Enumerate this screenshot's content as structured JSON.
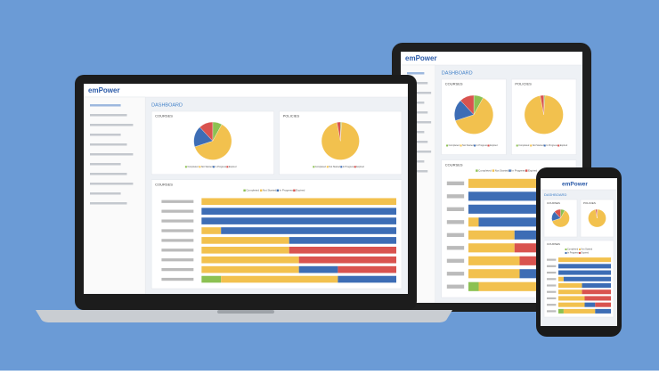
{
  "brand": "emPower",
  "heading": "DASHBOARD",
  "courses_card": {
    "title": "COURSES",
    "pie": [
      8,
      62,
      18,
      12
    ]
  },
  "policies_card": {
    "title": "POLICIES",
    "pie": [
      1,
      96,
      0,
      3
    ]
  },
  "courses_bars": {
    "title": "COURSES",
    "series": [
      {
        "name": "Completed",
        "color": "#8cc152",
        "values": [
          0,
          0,
          0,
          0,
          0,
          0,
          0,
          0,
          10
        ]
      },
      {
        "name": "Not Started",
        "color": "#f2c14e",
        "values": [
          100,
          0,
          0,
          10,
          45,
          45,
          50,
          50,
          60
        ]
      },
      {
        "name": "In Progress",
        "color": "#3d6db5",
        "values": [
          0,
          100,
          100,
          90,
          55,
          0,
          0,
          20,
          30
        ]
      },
      {
        "name": "Expired",
        "color": "#d9534f",
        "values": [
          0,
          0,
          0,
          0,
          0,
          55,
          50,
          30,
          0
        ]
      }
    ]
  }
}
